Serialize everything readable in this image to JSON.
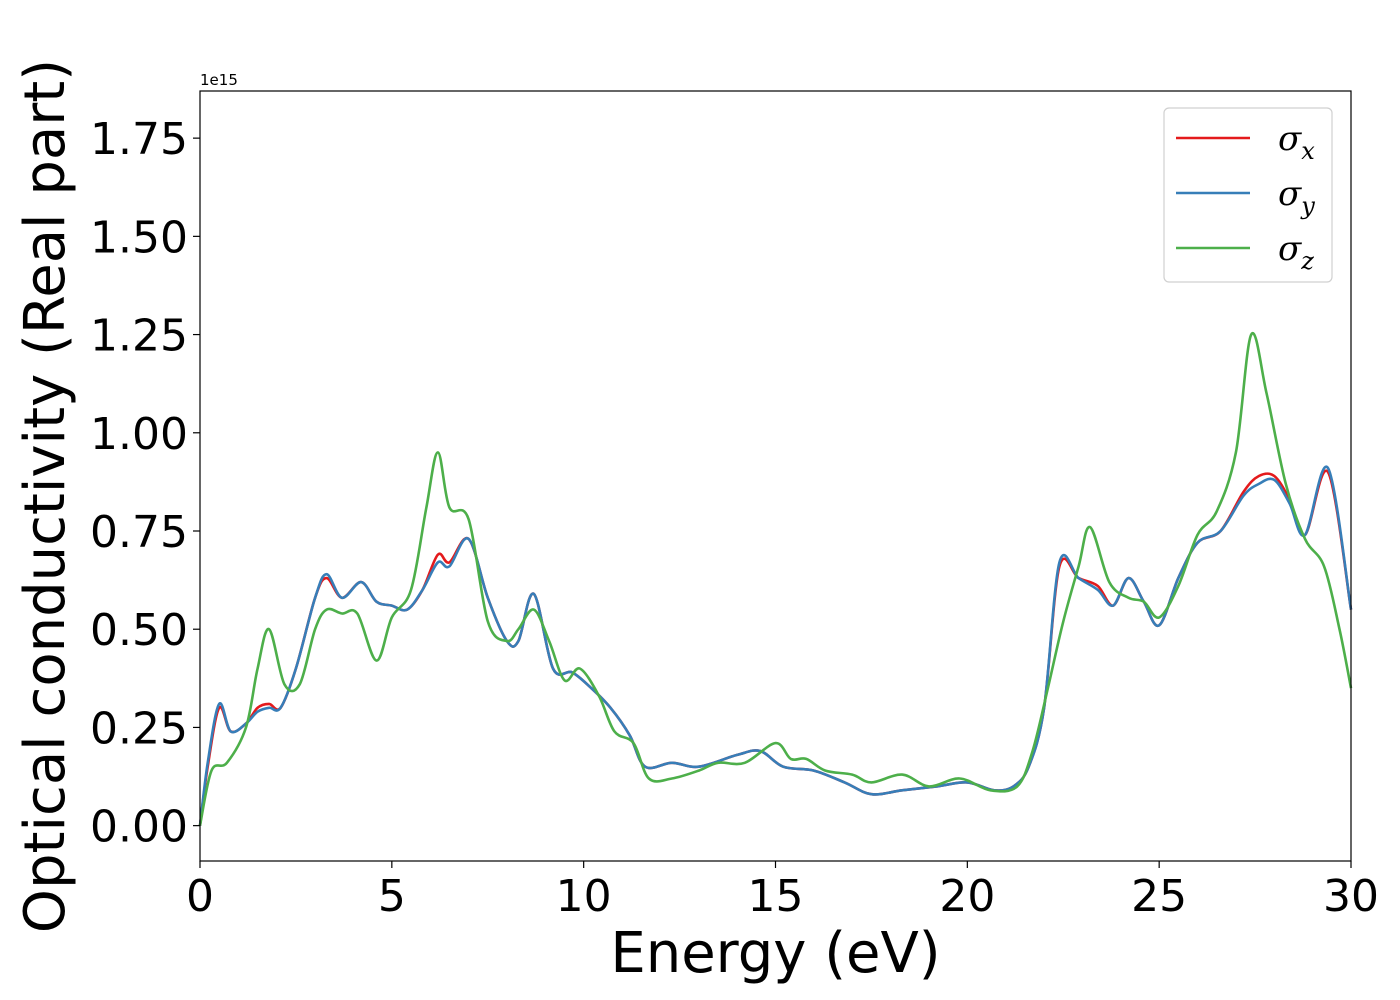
{
  "chart_data": {
    "type": "line",
    "title": "",
    "xlabel": "Energy (eV)",
    "ylabel": "Optical conductivity (Real part)",
    "y_offset_label": "1e15",
    "xlim": [
      0,
      30
    ],
    "ylim": [
      -0.09,
      1.87
    ],
    "x_ticks": [
      0,
      5,
      10,
      15,
      20,
      25,
      30
    ],
    "x_tick_labels": [
      "0",
      "5",
      "10",
      "15",
      "20",
      "25",
      "30"
    ],
    "y_ticks": [
      0.0,
      0.25,
      0.5,
      0.75,
      1.0,
      1.25,
      1.5,
      1.75
    ],
    "y_tick_labels": [
      "0.00",
      "0.25",
      "0.50",
      "0.75",
      "1.00",
      "1.25",
      "1.50",
      "1.75"
    ],
    "grid": false,
    "legend_position": "top-right",
    "series": [
      {
        "name": "σx",
        "legend_symbol": "σ",
        "legend_subscript": "x",
        "color": "#e41a1c",
        "x": [
          0,
          0.2,
          0.5,
          0.8,
          1.2,
          1.5,
          1.8,
          2.1,
          2.5,
          3.0,
          3.3,
          3.7,
          4.2,
          4.6,
          5.0,
          5.4,
          5.8,
          6.2,
          6.5,
          7.0,
          7.5,
          8.0,
          8.3,
          8.7,
          9.2,
          9.7,
          10.2,
          10.7,
          11.2,
          11.6,
          12.3,
          13.0,
          14.0,
          14.6,
          15.2,
          16.0,
          16.8,
          17.5,
          18.3,
          19.2,
          20.0,
          20.7,
          21.2,
          21.6,
          22.0,
          22.4,
          22.9,
          23.4,
          23.8,
          24.2,
          24.6,
          25.0,
          25.5,
          26.0,
          26.6,
          27.2,
          27.6,
          28.0,
          28.4,
          28.8,
          29.4,
          30.0
        ],
        "y": [
          0.0,
          0.15,
          0.3,
          0.24,
          0.26,
          0.3,
          0.31,
          0.3,
          0.4,
          0.58,
          0.63,
          0.58,
          0.62,
          0.57,
          0.56,
          0.55,
          0.6,
          0.69,
          0.67,
          0.73,
          0.58,
          0.47,
          0.47,
          0.59,
          0.4,
          0.39,
          0.35,
          0.3,
          0.23,
          0.15,
          0.16,
          0.15,
          0.18,
          0.19,
          0.15,
          0.14,
          0.11,
          0.08,
          0.09,
          0.1,
          0.11,
          0.09,
          0.1,
          0.15,
          0.3,
          0.66,
          0.63,
          0.61,
          0.56,
          0.63,
          0.57,
          0.51,
          0.63,
          0.72,
          0.75,
          0.85,
          0.89,
          0.89,
          0.83,
          0.74,
          0.9,
          0.55
        ]
      },
      {
        "name": "σy",
        "legend_symbol": "σ",
        "legend_subscript": "y",
        "color": "#377eb8",
        "x": [
          0,
          0.2,
          0.5,
          0.8,
          1.2,
          1.5,
          1.8,
          2.1,
          2.5,
          3.0,
          3.3,
          3.7,
          4.2,
          4.6,
          5.0,
          5.4,
          5.8,
          6.2,
          6.5,
          7.0,
          7.5,
          8.0,
          8.3,
          8.7,
          9.2,
          9.7,
          10.2,
          10.7,
          11.2,
          11.6,
          12.3,
          13.0,
          14.0,
          14.6,
          15.2,
          16.0,
          16.8,
          17.5,
          18.3,
          19.2,
          20.0,
          20.7,
          21.2,
          21.6,
          22.0,
          22.4,
          22.9,
          23.4,
          23.8,
          24.2,
          24.6,
          25.0,
          25.5,
          26.0,
          26.6,
          27.2,
          27.6,
          28.0,
          28.4,
          28.8,
          29.4,
          30.0
        ],
        "y": [
          0.0,
          0.16,
          0.31,
          0.24,
          0.26,
          0.29,
          0.3,
          0.3,
          0.4,
          0.58,
          0.64,
          0.58,
          0.62,
          0.57,
          0.56,
          0.55,
          0.6,
          0.67,
          0.66,
          0.73,
          0.58,
          0.47,
          0.47,
          0.59,
          0.4,
          0.39,
          0.35,
          0.3,
          0.23,
          0.15,
          0.16,
          0.15,
          0.18,
          0.19,
          0.15,
          0.14,
          0.11,
          0.08,
          0.09,
          0.1,
          0.11,
          0.09,
          0.1,
          0.15,
          0.3,
          0.67,
          0.63,
          0.6,
          0.56,
          0.63,
          0.57,
          0.51,
          0.63,
          0.72,
          0.75,
          0.84,
          0.87,
          0.88,
          0.82,
          0.74,
          0.91,
          0.55
        ]
      },
      {
        "name": "σz",
        "legend_symbol": "σ",
        "legend_subscript": "z",
        "color": "#4daf4a",
        "x": [
          0,
          0.3,
          0.7,
          1.2,
          1.5,
          1.8,
          2.2,
          2.6,
          3.0,
          3.3,
          3.7,
          4.1,
          4.6,
          5.0,
          5.5,
          5.9,
          6.2,
          6.5,
          7.0,
          7.5,
          8.0,
          8.3,
          8.7,
          9.1,
          9.5,
          9.9,
          10.4,
          10.8,
          11.3,
          11.7,
          12.3,
          13.0,
          13.5,
          14.2,
          15.0,
          15.4,
          15.8,
          16.3,
          17.0,
          17.5,
          18.3,
          19.0,
          19.8,
          20.6,
          21.3,
          21.7,
          22.1,
          22.5,
          22.9,
          23.2,
          23.7,
          24.2,
          24.6,
          25.0,
          25.5,
          26.0,
          26.5,
          27.0,
          27.4,
          27.8,
          28.3,
          28.8,
          29.3,
          29.7,
          30.0
        ],
        "y": [
          0.0,
          0.14,
          0.16,
          0.25,
          0.4,
          0.5,
          0.36,
          0.36,
          0.5,
          0.55,
          0.54,
          0.54,
          0.42,
          0.53,
          0.6,
          0.81,
          0.95,
          0.81,
          0.78,
          0.52,
          0.47,
          0.5,
          0.55,
          0.47,
          0.37,
          0.4,
          0.33,
          0.24,
          0.21,
          0.12,
          0.12,
          0.14,
          0.16,
          0.16,
          0.21,
          0.17,
          0.17,
          0.14,
          0.13,
          0.11,
          0.13,
          0.1,
          0.12,
          0.09,
          0.1,
          0.19,
          0.35,
          0.52,
          0.66,
          0.76,
          0.62,
          0.58,
          0.57,
          0.53,
          0.61,
          0.74,
          0.8,
          0.95,
          1.25,
          1.1,
          0.87,
          0.73,
          0.66,
          0.5,
          0.35
        ]
      }
    ]
  }
}
